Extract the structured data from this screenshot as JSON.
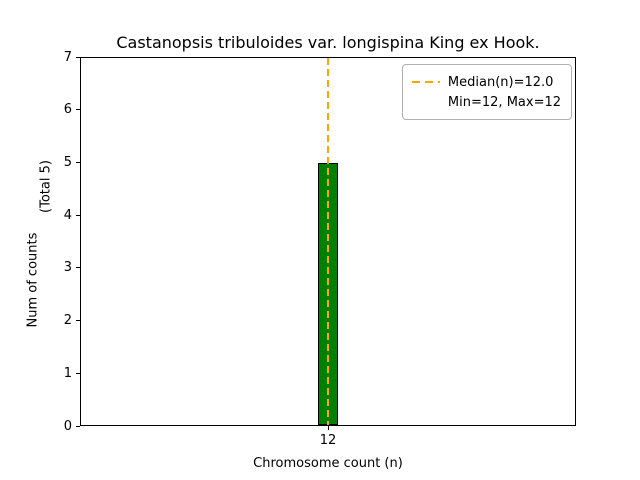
{
  "chart_data": {
    "type": "bar",
    "title": "Castanopsis tribuloides var. longispina King ex Hook.",
    "xlabel": "Chromosome count (n)",
    "ylabel": "Num of counts",
    "ylabel_secondary": "(Total 5)",
    "categories": [
      "12"
    ],
    "values": [
      5
    ],
    "ylim": [
      0,
      7
    ],
    "yticks": [
      0,
      1,
      2,
      3,
      4,
      5,
      6,
      7
    ],
    "median_line": {
      "x": "12",
      "label": "Median(n)=12.0"
    },
    "legend": [
      "Median(n)=12.0",
      "Min=12, Max=12"
    ],
    "legend_position": "upper right",
    "grid": false,
    "colors": {
      "bar_fill": "#008000",
      "bar_edge": "#000000",
      "median_line": "#FFA500",
      "legend_border": "#b0b0b0"
    }
  }
}
